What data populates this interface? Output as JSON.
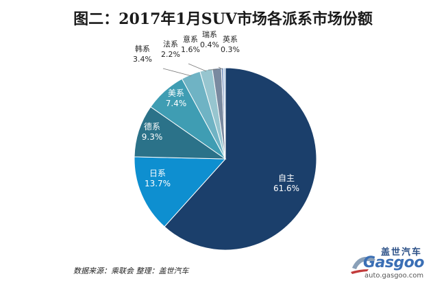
{
  "title": "图二：2017年1月SUV市场各派系市场份额",
  "source_text": "数据来源：乘联会   整理：盖世汽车",
  "logo": {
    "cn": "盖世汽车",
    "word": "Gasgoo",
    "url": "auto.gasgoo.com"
  },
  "chart_data": {
    "type": "pie",
    "title": "图二：2017年1月SUV市场各派系市场份额",
    "slices": [
      {
        "name": "自主",
        "value": 61.6,
        "label": "61.6%",
        "color": "#1b3f6b"
      },
      {
        "name": "日系",
        "value": 13.7,
        "label": "13.7%",
        "color": "#0e8fd0"
      },
      {
        "name": "德系",
        "value": 9.3,
        "label": "9.3%",
        "color": "#2b7289"
      },
      {
        "name": "美系",
        "value": 7.4,
        "label": "7.4%",
        "color": "#3f9db3"
      },
      {
        "name": "韩系",
        "value": 3.4,
        "label": "3.4%",
        "color": "#6fb3c4"
      },
      {
        "name": "法系",
        "value": 2.2,
        "label": "2.2%",
        "color": "#97c5cf"
      },
      {
        "name": "意系",
        "value": 1.6,
        "label": "1.6%",
        "color": "#7a8aa0"
      },
      {
        "name": "瑞系",
        "value": 0.4,
        "label": "0.4%",
        "color": "#8aa2c8"
      },
      {
        "name": "英系",
        "value": 0.3,
        "label": "0.3%",
        "color": "#a8c4e4"
      }
    ]
  }
}
